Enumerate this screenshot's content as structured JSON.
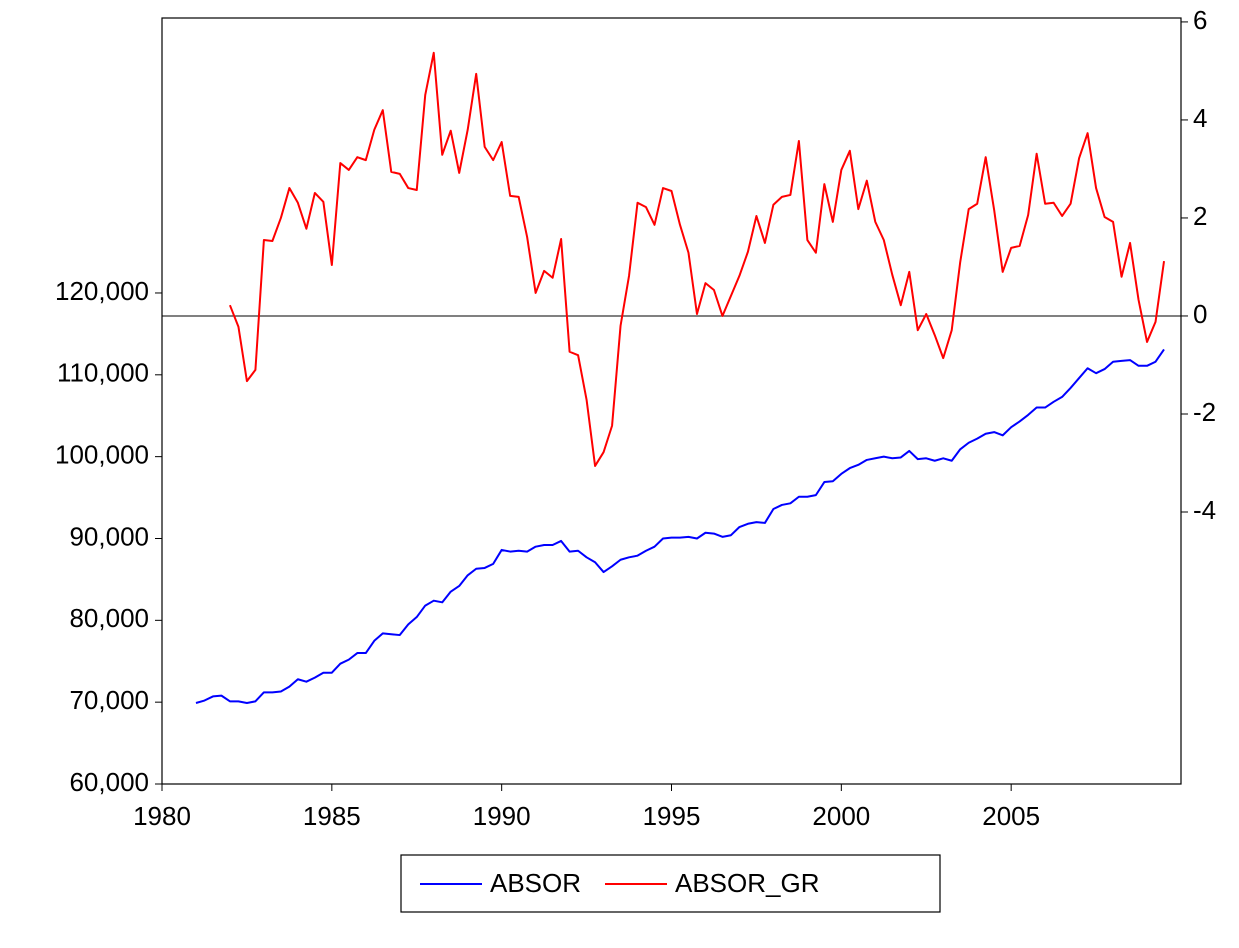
{
  "chart_data": {
    "type": "line",
    "x": [
      "1981Q1",
      "1981Q2",
      "1981Q3",
      "1981Q4",
      "1982Q1",
      "1982Q2",
      "1982Q3",
      "1982Q4",
      "1983Q1",
      "1983Q2",
      "1983Q3",
      "1983Q4",
      "1984Q1",
      "1984Q2",
      "1984Q3",
      "1984Q4",
      "1985Q1",
      "1985Q2",
      "1985Q3",
      "1985Q4",
      "1986Q1",
      "1986Q2",
      "1986Q3",
      "1986Q4",
      "1987Q1",
      "1987Q2",
      "1987Q3",
      "1987Q4",
      "1988Q1",
      "1988Q2",
      "1988Q3",
      "1988Q4",
      "1989Q1",
      "1989Q2",
      "1989Q3",
      "1989Q4",
      "1990Q1",
      "1990Q2",
      "1990Q3",
      "1990Q4",
      "1991Q1",
      "1991Q2",
      "1991Q3",
      "1991Q4",
      "1992Q1",
      "1992Q2",
      "1992Q3",
      "1992Q4",
      "1993Q1",
      "1993Q2",
      "1993Q3",
      "1993Q4",
      "1994Q1",
      "1994Q2",
      "1994Q3",
      "1994Q4",
      "1995Q1",
      "1995Q2",
      "1995Q3",
      "1995Q4",
      "1996Q1",
      "1996Q2",
      "1996Q3",
      "1996Q4",
      "1997Q1",
      "1997Q2",
      "1997Q3",
      "1997Q4",
      "1998Q1",
      "1998Q2",
      "1998Q3",
      "1998Q4",
      "1999Q1",
      "1999Q2",
      "1999Q3",
      "1999Q4",
      "2000Q1",
      "2000Q2",
      "2000Q3",
      "2000Q4",
      "2001Q1",
      "2001Q2",
      "2001Q3",
      "2001Q4",
      "2002Q1",
      "2002Q2",
      "2002Q3",
      "2002Q4",
      "2003Q1",
      "2003Q2",
      "2003Q3",
      "2003Q4",
      "2004Q1",
      "2004Q2",
      "2004Q3",
      "2004Q4",
      "2005Q1",
      "2005Q2",
      "2005Q3",
      "2005Q4",
      "2006Q1",
      "2006Q2",
      "2006Q3",
      "2006Q4",
      "2007Q1",
      "2007Q2",
      "2007Q3",
      "2007Q4",
      "2008Q1",
      "2008Q2",
      "2008Q3",
      "2008Q4",
      "2009Q1",
      "2009Q2",
      "2009Q3"
    ],
    "series": [
      {
        "name": "ABSOR",
        "color": "#0000ff",
        "values": [
          69900,
          70200,
          70700,
          70800,
          70100,
          70100,
          69900,
          70100,
          71200,
          71200,
          71300,
          71900,
          72800,
          72500,
          73000,
          73600,
          73600,
          74700,
          75200,
          76000,
          76000,
          77500,
          78400,
          78300,
          78200,
          79500,
          80400,
          81800,
          82400,
          82200,
          83500,
          84200,
          85500,
          86300,
          86400,
          86900,
          88600,
          88400,
          88500,
          88400,
          89000,
          89200,
          89200,
          89700,
          88400,
          88500,
          87700,
          87100,
          85900,
          86600,
          87400,
          87700,
          87900,
          88500,
          89000,
          90000,
          90100,
          90100,
          90200,
          90000,
          90700,
          90600,
          90200,
          90400,
          91400,
          91800,
          92000,
          91900,
          93600,
          94100,
          94300,
          95100,
          95100,
          95300,
          96900,
          97000,
          97900,
          98600,
          99000,
          99600,
          99800,
          100000,
          99800,
          99900,
          100700,
          99700,
          99800,
          99500,
          99800,
          99500,
          100900,
          101700,
          102200,
          102800,
          103000,
          102600,
          103600,
          104300,
          105100,
          106000,
          106000,
          106700,
          107300,
          108400,
          109600,
          110800,
          110200,
          110700,
          111600,
          111700,
          111800,
          111100,
          111100,
          111600,
          113100
        ]
      },
      {
        "name": "ABSOR_GR",
        "color": "#ff0000",
        "axis": "y2",
        "values": [
          null,
          null,
          null,
          null,
          0.22,
          -0.22,
          -1.33,
          -1.1,
          1.55,
          1.53,
          2.0,
          2.61,
          2.31,
          1.78,
          2.51,
          2.33,
          1.04,
          3.12,
          2.98,
          3.24,
          3.18,
          3.8,
          4.2,
          2.94,
          2.9,
          2.61,
          2.57,
          4.51,
          5.37,
          3.29,
          3.78,
          2.92,
          3.8,
          4.94,
          3.45,
          3.18,
          3.55,
          2.45,
          2.43,
          1.61,
          0.47,
          0.92,
          0.78,
          1.57,
          -0.73,
          -0.8,
          -1.71,
          -3.06,
          -2.78,
          -2.24,
          -0.2,
          0.82,
          2.31,
          2.22,
          1.86,
          2.61,
          2.55,
          1.86,
          1.29,
          0.04,
          0.67,
          0.53,
          0.0,
          0.41,
          0.82,
          1.31,
          2.04,
          1.49,
          2.27,
          2.43,
          2.47,
          3.57,
          1.55,
          1.29,
          2.69,
          1.92,
          2.98,
          3.37,
          2.18,
          2.76,
          1.92,
          1.55,
          0.84,
          0.22,
          0.9,
          -0.29,
          0.04,
          -0.39,
          -0.86,
          -0.29,
          1.1,
          2.18,
          2.29,
          3.24,
          2.16,
          0.9,
          1.39,
          1.43,
          2.06,
          3.31,
          2.29,
          2.31,
          2.04,
          2.29,
          3.22,
          3.73,
          2.61,
          2.02,
          1.92,
          0.8,
          1.49,
          0.33,
          -0.53,
          -0.12,
          1.12
        ]
      }
    ],
    "xlim": [
      1980,
      2010
    ],
    "xticks": [
      1980,
      1985,
      1990,
      1995,
      2000,
      2005
    ],
    "ylim": [
      60000,
      153600
    ],
    "yticks": [
      {
        "value": 60000,
        "label": "60,000"
      },
      {
        "value": 70000,
        "label": "70,000"
      },
      {
        "value": 80000,
        "label": "80,000"
      },
      {
        "value": 90000,
        "label": "90,000"
      },
      {
        "value": 100000,
        "label": "100,000"
      },
      {
        "value": 110000,
        "label": "110,000"
      },
      {
        "value": 120000,
        "label": "120,000"
      }
    ],
    "y2lim": [
      -9.55,
      6.08
    ],
    "y2ticks": [
      -4,
      -2,
      0,
      2,
      4,
      6
    ],
    "legend": "bottom"
  }
}
